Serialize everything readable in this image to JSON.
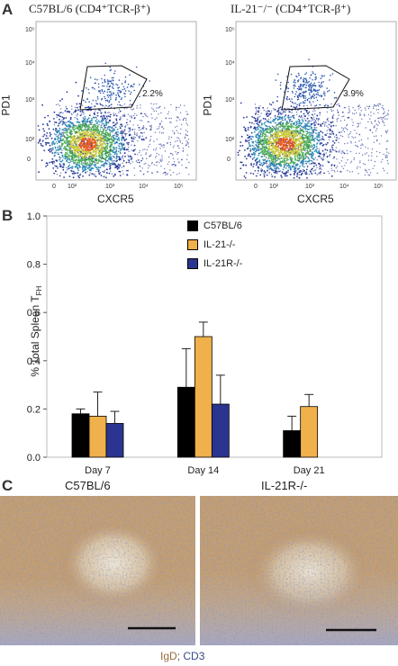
{
  "panels": {
    "a": {
      "letter": "A",
      "plots": [
        {
          "title": "C57BL/6 (CD4⁺TCR-β⁺)",
          "gate_pct": "2.2%"
        },
        {
          "title": "IL-21⁻/⁻ (CD4⁺TCR-β⁺)",
          "gate_pct": "3.9%"
        }
      ],
      "x_label": "CXCR5",
      "y_label": "PD1",
      "y_ticks": [
        "10⁵",
        "10⁴",
        "10³",
        "10²",
        "0"
      ],
      "x_ticks": [
        "0",
        "10²",
        "10³",
        "10⁴",
        "10⁵"
      ]
    },
    "b": {
      "letter": "B"
    },
    "c": {
      "letter": "C",
      "titles": [
        "C57BL/6",
        "IL-21R-/-"
      ],
      "stain_igd": "IgD",
      "stain_sep": "; ",
      "stain_cd3": "CD3",
      "colors": {
        "igd": "#9a6a3a",
        "cd3": "#3a4a8a"
      }
    }
  },
  "chart_data": {
    "type": "bar",
    "categories": [
      "Day 7",
      "Day 14",
      "Day 21"
    ],
    "ylabel": "% Total Spleen T",
    "ylabel_sub": "FH",
    "ylim": [
      0,
      1.0
    ],
    "yticks": [
      "0.0",
      "0.2",
      "0.4",
      "0.6",
      "0.8",
      "1.0"
    ],
    "legend_position": "top-right",
    "series": [
      {
        "name": "C57BL/6",
        "color": "#000000",
        "values": [
          0.18,
          0.29,
          0.11
        ],
        "errors": [
          0.02,
          0.16,
          0.06
        ]
      },
      {
        "name": "IL-21-/-",
        "color": "#f0b04b",
        "values": [
          0.17,
          0.5,
          0.21
        ],
        "errors": [
          0.1,
          0.06,
          0.05
        ]
      },
      {
        "name": "IL-21R-/-",
        "color": "#2b3590",
        "values": [
          0.14,
          0.22,
          null
        ],
        "errors": [
          0.05,
          0.12,
          null
        ]
      }
    ]
  }
}
